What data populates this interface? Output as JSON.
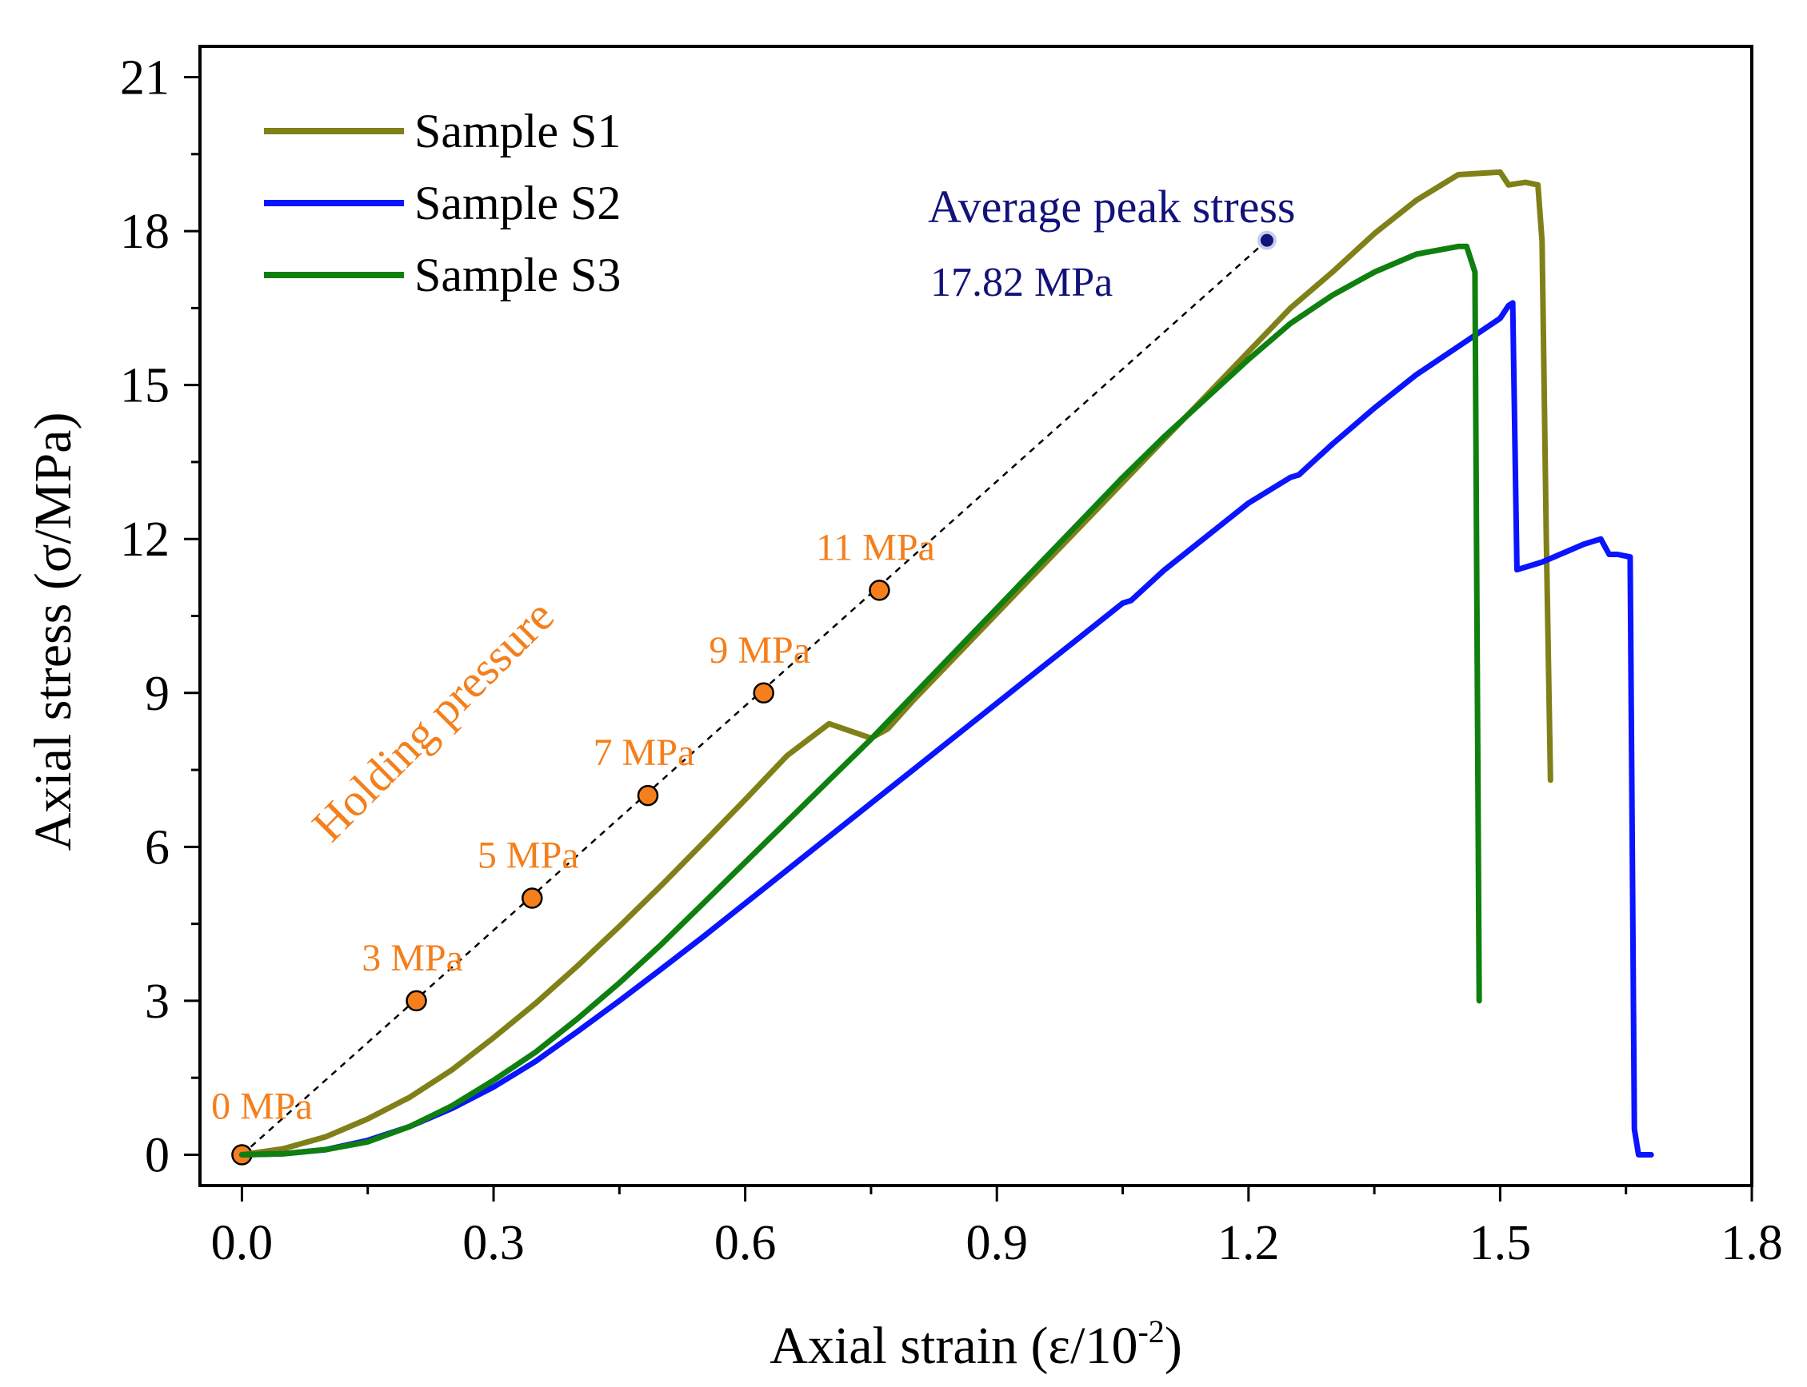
{
  "chart_data": {
    "type": "line",
    "xlabel": "Axial strain (ε/10",
    "xlabel_sup": "-2",
    "xlabel_close": ")",
    "ylabel": "Axial stress (σ/MPa)",
    "xlim": [
      -0.05,
      1.8
    ],
    "ylim": [
      -0.6,
      21.6
    ],
    "x_ticks": [
      0.0,
      0.3,
      0.6,
      0.9,
      1.2,
      1.5,
      1.8
    ],
    "x_tick_labels": [
      "0.0",
      "0.3",
      "0.6",
      "0.9",
      "1.2",
      "1.5",
      "1.8"
    ],
    "y_ticks": [
      0,
      3,
      6,
      9,
      12,
      15,
      18,
      21
    ],
    "y_tick_labels": [
      "0",
      "3",
      "6",
      "9",
      "12",
      "15",
      "18",
      "21"
    ],
    "grid": false,
    "legend_position": "top-left",
    "series": [
      {
        "name": "Sample S1",
        "color": "#808019",
        "x": [
          0.0,
          0.05,
          0.1,
          0.15,
          0.2,
          0.25,
          0.3,
          0.35,
          0.4,
          0.45,
          0.5,
          0.55,
          0.6,
          0.65,
          0.7,
          0.75,
          0.77,
          0.8,
          0.85,
          0.9,
          0.95,
          1.0,
          1.05,
          1.1,
          1.15,
          1.2,
          1.25,
          1.3,
          1.35,
          1.4,
          1.45,
          1.5,
          1.51,
          1.53,
          1.545,
          1.55,
          1.555,
          1.56
        ],
        "y": [
          0.0,
          0.12,
          0.35,
          0.7,
          1.12,
          1.65,
          2.28,
          2.95,
          3.68,
          4.45,
          5.25,
          6.08,
          6.92,
          7.78,
          8.4,
          8.12,
          8.3,
          8.85,
          9.7,
          10.55,
          11.4,
          12.25,
          13.1,
          13.95,
          14.8,
          15.65,
          16.5,
          17.2,
          17.95,
          18.6,
          19.1,
          19.15,
          18.9,
          18.95,
          18.9,
          17.8,
          12.0,
          7.3
        ]
      },
      {
        "name": "Sample S2",
        "color": "#0a14ff",
        "x": [
          0.0,
          0.05,
          0.1,
          0.15,
          0.2,
          0.25,
          0.3,
          0.35,
          0.4,
          0.45,
          0.5,
          0.55,
          0.6,
          0.65,
          0.7,
          0.75,
          0.8,
          0.85,
          0.9,
          0.95,
          1.0,
          1.05,
          1.06,
          1.1,
          1.15,
          1.2,
          1.25,
          1.26,
          1.3,
          1.35,
          1.4,
          1.45,
          1.5,
          1.51,
          1.515,
          1.52,
          1.55,
          1.6,
          1.62,
          1.63,
          1.64,
          1.655,
          1.66,
          1.665,
          1.67,
          1.68
        ],
        "y": [
          0.0,
          0.02,
          0.1,
          0.28,
          0.55,
          0.9,
          1.32,
          1.82,
          2.4,
          3.0,
          3.62,
          4.25,
          4.9,
          5.55,
          6.2,
          6.85,
          7.5,
          8.15,
          8.8,
          9.45,
          10.1,
          10.75,
          10.8,
          11.4,
          12.05,
          12.7,
          13.2,
          13.25,
          13.85,
          14.55,
          15.2,
          15.75,
          16.3,
          16.55,
          16.6,
          11.4,
          11.55,
          11.9,
          12.0,
          11.7,
          11.7,
          11.65,
          0.5,
          0.0,
          0.0,
          0.0
        ]
      },
      {
        "name": "Sample S3",
        "color": "#0f7f0f",
        "x": [
          0.0,
          0.05,
          0.1,
          0.15,
          0.2,
          0.25,
          0.3,
          0.35,
          0.4,
          0.45,
          0.5,
          0.55,
          0.6,
          0.65,
          0.7,
          0.75,
          0.8,
          0.85,
          0.9,
          0.95,
          1.0,
          1.05,
          1.1,
          1.15,
          1.2,
          1.25,
          1.3,
          1.35,
          1.4,
          1.45,
          1.46,
          1.47,
          1.475
        ],
        "y": [
          0.0,
          0.02,
          0.1,
          0.25,
          0.55,
          0.95,
          1.45,
          2.0,
          2.65,
          3.35,
          4.1,
          4.9,
          5.7,
          6.5,
          7.3,
          8.1,
          8.95,
          9.8,
          10.65,
          11.5,
          12.35,
          13.2,
          14.0,
          14.75,
          15.5,
          16.2,
          16.75,
          17.2,
          17.55,
          17.7,
          17.7,
          17.2,
          3.0
        ]
      }
    ],
    "holding_pressure": {
      "label": "Holding pressure",
      "color": "#f47f1c",
      "points": [
        {
          "label": "0 MPa",
          "x": 0.0,
          "y": 0.0
        },
        {
          "label": "3 MPa",
          "x": 0.208,
          "y": 3.0
        },
        {
          "label": "5 MPa",
          "x": 0.346,
          "y": 5.0
        },
        {
          "label": "7 MPa",
          "x": 0.484,
          "y": 7.0
        },
        {
          "label": "9 MPa",
          "x": 0.622,
          "y": 9.0
        },
        {
          "label": "11 MPa",
          "x": 0.76,
          "y": 11.0
        }
      ],
      "dashed_line_end": {
        "x": 1.222,
        "y": 17.82
      }
    },
    "average_peak": {
      "title": "Average peak stress",
      "value_label": "17.82 MPa",
      "x": 1.222,
      "y": 17.82,
      "color": "#13127a"
    }
  }
}
